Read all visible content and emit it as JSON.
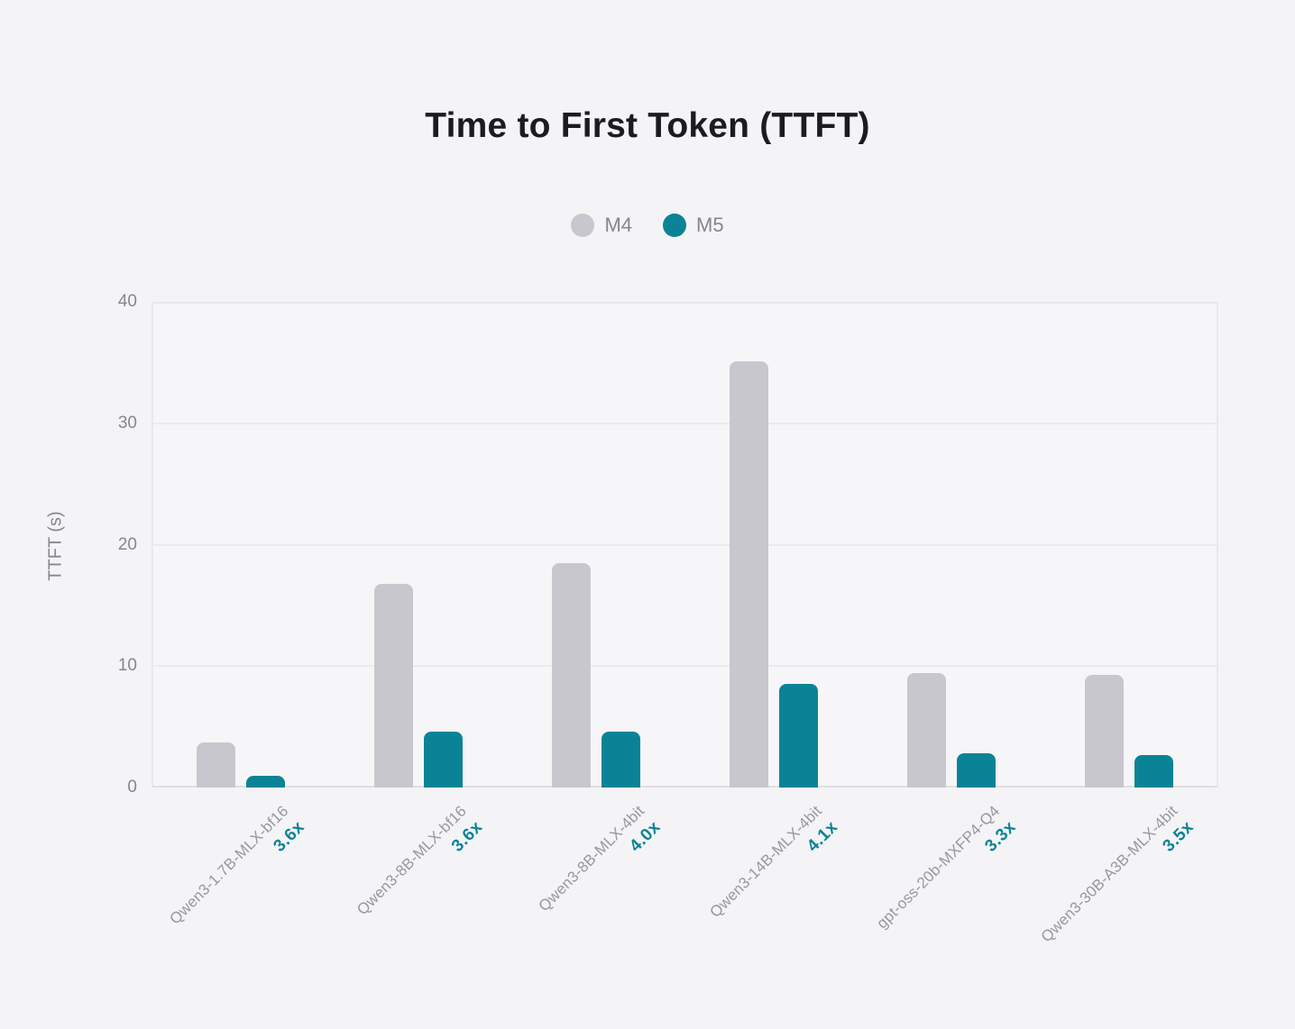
{
  "page": {
    "background": "#f4f4f6"
  },
  "chart_data": {
    "type": "bar",
    "title": "Time to First Token (TTFT)",
    "xlabel": "",
    "ylabel": "TTFT (s)",
    "ylim": [
      0,
      40
    ],
    "yticks": [
      0,
      10,
      20,
      30,
      40
    ],
    "grid": true,
    "legend_position": "top-center",
    "categories": [
      "Qwen3-1.7B-MLX-bf16",
      "Qwen3-8B-MLX-bf16",
      "Qwen3-8B-MLX-4bit",
      "Qwen3-14B-MLX-4bit",
      "gpt-oss-20b-MXFP4-Q4",
      "Qwen3-30B-A3B-MLX-4bit"
    ],
    "speedup_labels": [
      "3.6x",
      "3.6x",
      "4.0x",
      "4.1x",
      "3.3x",
      "3.5x"
    ],
    "series": [
      {
        "name": "M4",
        "color": "#c7c7cd",
        "values": [
          3.7,
          16.8,
          18.5,
          35.1,
          9.4,
          9.3
        ]
      },
      {
        "name": "M5",
        "color": "#0b8397",
        "values": [
          1.0,
          4.6,
          4.6,
          8.5,
          2.85,
          2.65
        ]
      }
    ]
  },
  "colors": {
    "background": "#f4f4f6",
    "plot_background": "#f6f6f8",
    "plot_border": "#e9e9ec",
    "gridline": "#ebebee",
    "axis_line": "#dfdfe3",
    "title_text": "#1c1c1e",
    "tick_text": "#86868b",
    "category_text": "#98989d",
    "speedup_text": "#0b8397",
    "legend_text": "#86868b"
  }
}
